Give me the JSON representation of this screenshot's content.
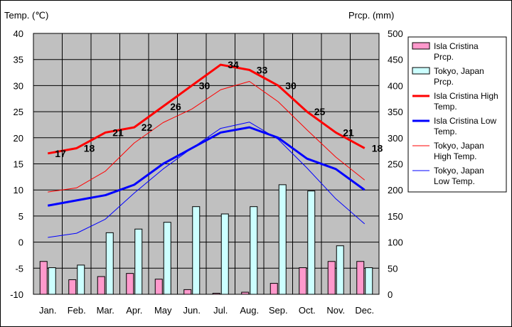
{
  "chart_data": {
    "type": "bar+line",
    "categories": [
      "Jan.",
      "Feb.",
      "Mar.",
      "Apr.",
      "May",
      "Jun.",
      "Jul.",
      "Aug.",
      "Sep.",
      "Oct.",
      "Nov.",
      "Dec."
    ],
    "y_left": {
      "label": "Temp. (℃)",
      "min": -10,
      "max": 40,
      "step": 5
    },
    "y_right": {
      "label": "Prcp. (mm)",
      "min": 0,
      "max": 500,
      "step": 50
    },
    "grid": true,
    "legend_position": "right",
    "bars": [
      {
        "name": "Isla Cristina Prcp.",
        "color": "#ff99cc",
        "values": [
          63,
          28,
          34,
          40,
          29,
          9,
          2,
          4,
          21,
          51,
          63,
          63
        ]
      },
      {
        "name": "Tokyo, Japan Prcp.",
        "color": "#ccffff",
        "values": [
          51,
          56,
          118,
          125,
          138,
          168,
          154,
          168,
          210,
          198,
          93,
          51
        ]
      }
    ],
    "lines": [
      {
        "name": "Isla Cristina High Temp.",
        "color": "#ff0000",
        "width": 3,
        "values": [
          17,
          18,
          21,
          22,
          26,
          30,
          34,
          33,
          30,
          25,
          21,
          18
        ],
        "labels": [
          "17",
          "18",
          "21",
          "22",
          "26",
          "30",
          "34",
          "33",
          "30",
          "25",
          "21",
          "18"
        ]
      },
      {
        "name": "Isla Cristina Low Temp.",
        "color": "#0000ff",
        "width": 3,
        "values": [
          7,
          8,
          9,
          11,
          15,
          18,
          21,
          22,
          20,
          16,
          14,
          10
        ]
      },
      {
        "name": "Tokyo, Japan High Temp.",
        "color": "#ff0000",
        "width": 1,
        "values": [
          9.6,
          10.4,
          13.6,
          19.0,
          22.9,
          25.5,
          29.2,
          30.8,
          26.9,
          21.5,
          16.3,
          11.9
        ]
      },
      {
        "name": "Tokyo, Japan Low Temp.",
        "color": "#0000ff",
        "width": 1,
        "values": [
          0.9,
          1.7,
          4.4,
          9.4,
          14.0,
          18.0,
          21.8,
          23.0,
          19.7,
          14.2,
          8.3,
          3.5
        ]
      }
    ],
    "legend": [
      {
        "kind": "bar",
        "color": "#ff99cc",
        "line1": "Isla Cristina",
        "line2": "Prcp."
      },
      {
        "kind": "bar",
        "color": "#ccffff",
        "line1": "Tokyo, Japan",
        "line2": "Prcp."
      },
      {
        "kind": "line",
        "color": "#ff0000",
        "width": 3,
        "line1": "Isla Cristina High",
        "line2": "Temp."
      },
      {
        "kind": "line",
        "color": "#0000ff",
        "width": 3,
        "line1": "Isla Cristina Low",
        "line2": "Temp."
      },
      {
        "kind": "line",
        "color": "#ff0000",
        "width": 1,
        "line1": "Tokyo, Japan",
        "line2": "High Temp."
      },
      {
        "kind": "line",
        "color": "#0000ff",
        "width": 1,
        "line1": "Tokyo, Japan",
        "line2": "Low Temp."
      }
    ]
  }
}
